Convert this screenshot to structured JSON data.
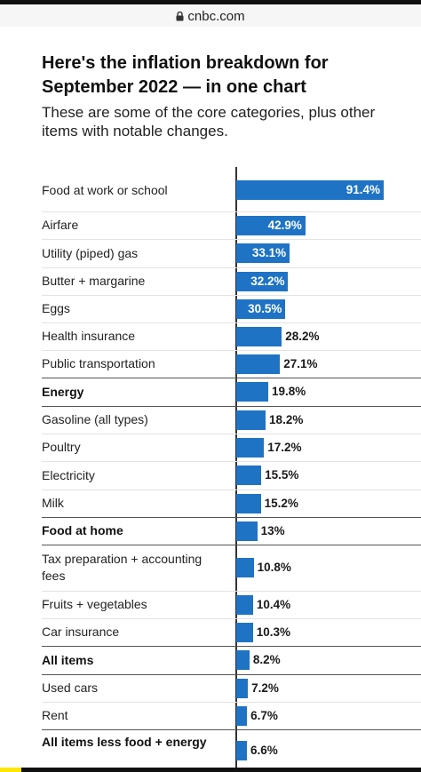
{
  "browser": {
    "url": "cnbc.com"
  },
  "header": {
    "title": "Here's the inflation breakdown for September 2022 — in one chart",
    "subtitle": "These are some of the core categories, plus other items with notable changes."
  },
  "colors": {
    "bar": "#1f73c4",
    "label_inside": "#ffffff",
    "label_outside": "#1a1a1a"
  },
  "chart_data": {
    "type": "bar",
    "orientation": "horizontal",
    "title": "Here's the inflation breakdown for September 2022 — in one chart",
    "subtitle": "These are some of the core categories, plus other items with notable changes.",
    "categories": [
      "Food at work or school",
      "Airfare",
      "Utility (piped) gas",
      "Butter + margarine",
      "Eggs",
      "Health insurance",
      "Public transportation",
      "Energy",
      "Gasoline (all types)",
      "Poultry",
      "Electricity",
      "Milk",
      "Food at home",
      "Tax preparation + accounting fees",
      "Fruits + vegetables",
      "Car insurance",
      "All items",
      "Used cars",
      "Rent",
      "All items less food + energy"
    ],
    "values": [
      91.4,
      42.9,
      33.1,
      32.2,
      30.5,
      28.2,
      27.1,
      19.8,
      18.2,
      17.2,
      15.5,
      15.2,
      13,
      10.8,
      10.4,
      10.3,
      8.2,
      7.2,
      6.7,
      6.6
    ],
    "value_labels": [
      "91.4%",
      "42.9%",
      "33.1%",
      "32.2%",
      "30.5%",
      "28.2%",
      "27.1%",
      "19.8%",
      "18.2%",
      "17.2%",
      "15.5%",
      "15.2%",
      "13%",
      "10.8%",
      "10.4%",
      "10.3%",
      "8.2%",
      "7.2%",
      "6.7%",
      "6.6%"
    ],
    "bold_categories": [
      "Energy",
      "Food at home",
      "All items",
      "All items less food + energy"
    ],
    "xlim": [
      0,
      100
    ],
    "grid": false
  }
}
